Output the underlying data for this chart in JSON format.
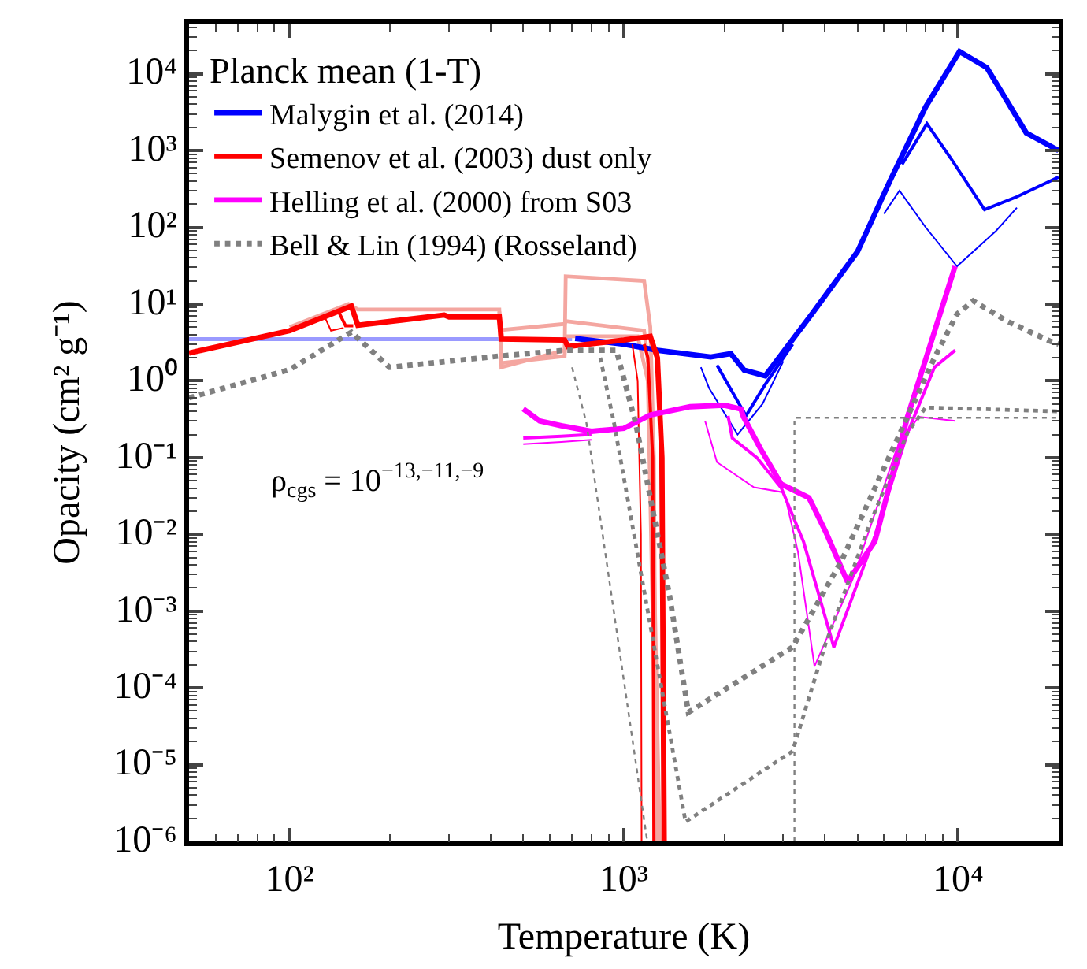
{
  "chart_data": {
    "type": "line",
    "xlabel": "Temperature (K)",
    "ylabel": "Opacity (cm² g⁻¹)",
    "legend_title": "Planck mean (1-T)",
    "log": "xy",
    "legend": "top left",
    "marker": "none",
    "xlim": [
      50,
      20000
    ],
    "ylim": [
      1e-06,
      45000
    ],
    "xticks": [
      {
        "value": 100,
        "label": "10²"
      },
      {
        "value": 1000,
        "label": "10³"
      },
      {
        "value": 10000,
        "label": "10⁴"
      }
    ],
    "yticks": [
      {
        "value": 1e-06,
        "label": "10⁻⁶"
      },
      {
        "value": 1e-05,
        "label": "10⁻⁵"
      },
      {
        "value": 0.0001,
        "label": "10⁻⁴"
      },
      {
        "value": 0.001,
        "label": "10⁻³"
      },
      {
        "value": 0.01,
        "label": "10⁻²"
      },
      {
        "value": 0.1,
        "label": "10⁻¹"
      },
      {
        "value": 1,
        "label": "10⁰"
      },
      {
        "value": 10,
        "label": "10¹"
      },
      {
        "value": 100,
        "label": "10²"
      },
      {
        "value": 1000,
        "label": "10³"
      },
      {
        "value": 10000,
        "label": "10⁴"
      }
    ],
    "annotations": [
      "ρ$_{cgs}$ = 10$^{−13,−11,−9}$"
    ],
    "series": [
      {
        "color": "#9a9aff",
        "x": [
          50,
          700
        ],
        "values": [
          3.5,
          3.5
        ]
      },
      {
        "color": "#f4a6a0",
        "x": [
          100,
          150,
          160,
          424,
          430,
          665,
          670,
          1150,
          1200,
          1230,
          1250
        ],
        "values": [
          5,
          10,
          8.5,
          8.5,
          1.5,
          2.5,
          23,
          20,
          5,
          0.1,
          1e-06
        ]
      },
      {
        "color": "#f4a6a0",
        "x": [
          424,
          430,
          665,
          670,
          1150,
          1200,
          1280
        ],
        "values": [
          8,
          4.6,
          5.5,
          6,
          4.5,
          1,
          1e-06
        ]
      },
      {
        "color": "#f4a6a0",
        "x": [
          424,
          430,
          665,
          670,
          1100,
          1180,
          1260
        ],
        "values": [
          7.5,
          1.7,
          2.1,
          3.8,
          3.8,
          1,
          1e-06
        ]
      },
      {
        "name": "Malygin et al. (2014)",
        "color": "#0000ff",
        "x": [
          715,
          1000,
          1260,
          1820,
          2090,
          2290,
          2650,
          3650,
          5000,
          6300,
          8000,
          10100,
          12200,
          16000,
          20000
        ],
        "values": [
          3.56,
          3.0,
          2.5,
          2.05,
          2.26,
          1.38,
          1.16,
          7.4,
          48,
          430,
          3700,
          19500,
          12000,
          1700,
          1000
        ]
      },
      {
        "color": "#0000ff",
        "x": [
          1900,
          2320,
          2650,
          3200,
          4500,
          6800,
          8070,
          9500,
          12000,
          15000,
          20000
        ],
        "values": [
          1.6,
          0.35,
          0.9,
          3,
          null,
          660,
          2240,
          800,
          170,
          250,
          450
        ]
      },
      {
        "color": "#0000ff",
        "x": [
          1700,
          1800,
          2190,
          2600,
          3000,
          4500,
          6000,
          6680,
          8000,
          9930,
          13000,
          15000
        ],
        "values": [
          1.5,
          0.8,
          0.2,
          0.5,
          1.8,
          null,
          150,
          300,
          100,
          31,
          90,
          180
        ]
      },
      {
        "name": "Semenov et al. (2003) dust only",
        "color": "#ff0000",
        "x": [
          50,
          100,
          153,
          160,
          290,
          300,
          424,
          430,
          665,
          680,
          1000,
          1200,
          1260,
          1300,
          1320
        ],
        "values": [
          2.3,
          4.5,
          9.4,
          5.3,
          7.2,
          6.8,
          6.8,
          3.5,
          3.4,
          2.8,
          3.4,
          3.8,
          2,
          0.1,
          1e-06
        ]
      },
      {
        "color": "#ff0000",
        "x": [
          135,
          140,
          147,
          155,
          500,
          1150,
          1180,
          1220,
          1230
        ],
        "values": [
          7.6,
          8,
          5.2,
          5.2,
          null,
          3.0,
          2,
          0.1,
          1e-06
        ]
      },
      {
        "color": "#ff0000",
        "x": [
          120,
          127,
          133,
          145,
          500,
          1060,
          1100,
          1125,
          1130
        ],
        "values": [
          6.6,
          7,
          4.5,
          4.9,
          null,
          3.0,
          1,
          0.01,
          1e-06
        ]
      },
      {
        "name": "Helling et al. (2000) from S03",
        "color": "#ff00ff",
        "x": [
          500,
          560,
          650,
          800,
          1000,
          1200,
          1580,
          2000,
          2240,
          2280,
          2570,
          2960,
          3580,
          4010,
          4670,
          5640,
          7060,
          9800
        ],
        "values": [
          0.43,
          0.3,
          0.26,
          0.22,
          0.24,
          0.36,
          0.46,
          0.48,
          0.43,
          0.34,
          0.128,
          0.045,
          0.03,
          0.011,
          0.0024,
          0.0081,
          0.34,
          31
        ]
      },
      {
        "color": "#ff00ff",
        "x": [
          500,
          650,
          800,
          1500,
          2050,
          2110,
          2500,
          2960,
          3450,
          4250,
          5640,
          7060,
          8500,
          9800
        ],
        "values": [
          0.18,
          0.19,
          0.2,
          null,
          0.35,
          0.18,
          0.1,
          0.04,
          0.008,
          0.00034,
          0.0095,
          0.21,
          1.5,
          2.5
        ]
      },
      {
        "color": "#ff00ff",
        "x": [
          500,
          650,
          800,
          1200,
          1750,
          1900,
          2450,
          3020,
          3320,
          3720,
          4840,
          6550,
          7620,
          9800
        ],
        "values": [
          0.15,
          0.16,
          0.17,
          null,
          0.3,
          0.087,
          0.041,
          0.035,
          0.0059,
          0.00019,
          0.0026,
          0.13,
          0.34,
          0.3
        ]
      },
      {
        "name": "Bell & Lin (1994) (Rosseland)",
        "color": "#808080",
        "line_style": "dotted",
        "x": [
          50,
          100,
          153,
          199,
          424,
          665,
          950,
          1085,
          1370,
          1560,
          3200,
          4490,
          7060,
          8500,
          9930,
          11100,
          14000,
          18800,
          20000
        ],
        "values": [
          0.6,
          1.4,
          4.3,
          1.5,
          2.1,
          2.5,
          2.5,
          0.28,
          0.0016,
          4.8e-05,
          0.00034,
          0.0046,
          0.34,
          2,
          7.4,
          11,
          6,
          3.3,
          3
        ]
      },
      {
        "color": "#808080",
        "line_style": "dotted",
        "x": [
          850,
          935,
          1530,
          3200,
          4010,
          5420,
          7060,
          8000,
          20000
        ],
        "values": [
          2.0,
          0.28,
          1.8e-06,
          1.5e-05,
          0.00037,
          0.013,
          0.21,
          0.45,
          0.4
        ]
      },
      {
        "color": "#808080",
        "line_style": "dotted",
        "x": [
          700,
          773,
          1175,
          2000,
          3240,
          3240,
          20000
        ],
        "values": [
          1.5,
          0.28,
          1e-06,
          null,
          1e-06,
          0.33,
          0.33
        ]
      }
    ]
  }
}
